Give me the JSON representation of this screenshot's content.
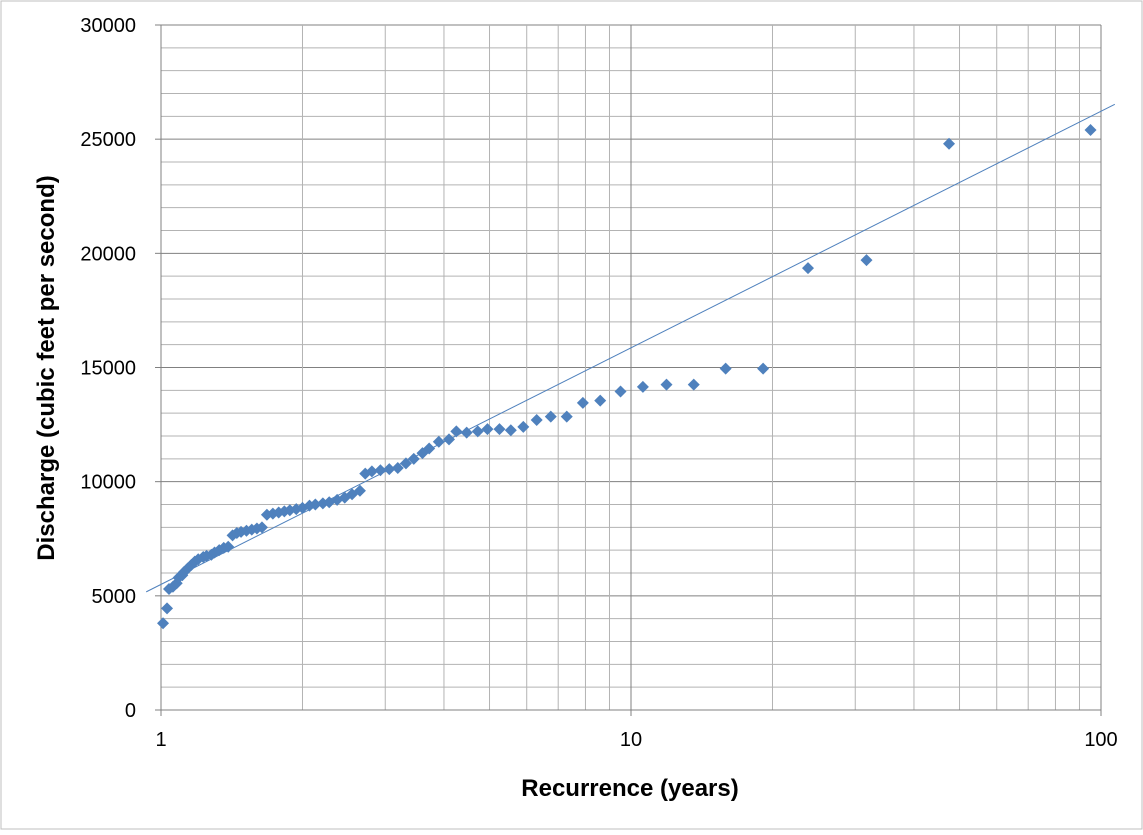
{
  "chart_data": {
    "type": "scatter",
    "title": "",
    "xlabel": "Recurrence (years)",
    "ylabel": "Discharge (cubic feet per second)",
    "x_scale": "log",
    "xlim": [
      1,
      100
    ],
    "ylim": [
      0,
      30000
    ],
    "x_ticks": [
      1,
      10,
      100
    ],
    "x_tick_labels": [
      "1",
      "10",
      "100"
    ],
    "y_ticks": [
      0,
      5000,
      10000,
      15000,
      20000,
      25000,
      30000
    ],
    "y_tick_labels": [
      "0",
      "5000",
      "10000",
      "15000",
      "20000",
      "25000",
      "30000"
    ],
    "grid": true,
    "legend": "none",
    "marker": "diamond",
    "colors": {
      "points": "#4f81bd",
      "trendline": "#4f81bd",
      "grid": "#b3b3b3",
      "major_grid": "#808080",
      "axis": "#808080",
      "border": "#bfbfbf"
    },
    "series": [
      {
        "points": [
          [
            1.01,
            3800
          ],
          [
            1.03,
            4450
          ],
          [
            1.04,
            5300
          ],
          [
            1.06,
            5400
          ],
          [
            1.08,
            5550
          ],
          [
            1.09,
            5800
          ],
          [
            1.11,
            5900
          ],
          [
            1.12,
            6050
          ],
          [
            1.14,
            6200
          ],
          [
            1.16,
            6350
          ],
          [
            1.18,
            6500
          ],
          [
            1.2,
            6600
          ],
          [
            1.23,
            6700
          ],
          [
            1.25,
            6750
          ],
          [
            1.28,
            6800
          ],
          [
            1.3,
            6900
          ],
          [
            1.33,
            7000
          ],
          [
            1.36,
            7100
          ],
          [
            1.39,
            7150
          ],
          [
            1.42,
            7650
          ],
          [
            1.45,
            7750
          ],
          [
            1.48,
            7800
          ],
          [
            1.52,
            7850
          ],
          [
            1.56,
            7900
          ],
          [
            1.6,
            7950
          ],
          [
            1.64,
            8000
          ],
          [
            1.68,
            8550
          ],
          [
            1.73,
            8600
          ],
          [
            1.78,
            8650
          ],
          [
            1.83,
            8700
          ],
          [
            1.88,
            8750
          ],
          [
            1.94,
            8800
          ],
          [
            2.0,
            8850
          ],
          [
            2.07,
            8950
          ],
          [
            2.13,
            9000
          ],
          [
            2.21,
            9050
          ],
          [
            2.28,
            9100
          ],
          [
            2.37,
            9200
          ],
          [
            2.46,
            9300
          ],
          [
            2.55,
            9450
          ],
          [
            2.65,
            9600
          ],
          [
            2.72,
            10350
          ],
          [
            2.81,
            10450
          ],
          [
            2.93,
            10500
          ],
          [
            3.06,
            10550
          ],
          [
            3.19,
            10600
          ],
          [
            3.32,
            10800
          ],
          [
            3.45,
            11000
          ],
          [
            3.6,
            11250
          ],
          [
            3.72,
            11450
          ],
          [
            3.9,
            11750
          ],
          [
            4.1,
            11850
          ],
          [
            4.25,
            12200
          ],
          [
            4.47,
            12150
          ],
          [
            4.72,
            12200
          ],
          [
            4.95,
            12300
          ],
          [
            5.25,
            12300
          ],
          [
            5.55,
            12250
          ],
          [
            5.9,
            12400
          ],
          [
            6.3,
            12700
          ],
          [
            6.75,
            12850
          ],
          [
            7.3,
            12850
          ],
          [
            7.9,
            13450
          ],
          [
            8.6,
            13550
          ],
          [
            9.5,
            13950
          ],
          [
            10.6,
            14150
          ],
          [
            11.9,
            14250
          ],
          [
            13.6,
            14250
          ],
          [
            15.9,
            14950
          ],
          [
            19.1,
            14950
          ],
          [
            23.8,
            19350
          ],
          [
            31.7,
            19700
          ],
          [
            47.5,
            24800
          ],
          [
            95.0,
            25400
          ]
        ]
      }
    ],
    "trendline": {
      "type": "logarithmic",
      "a": 5500,
      "b": 4500
    }
  }
}
